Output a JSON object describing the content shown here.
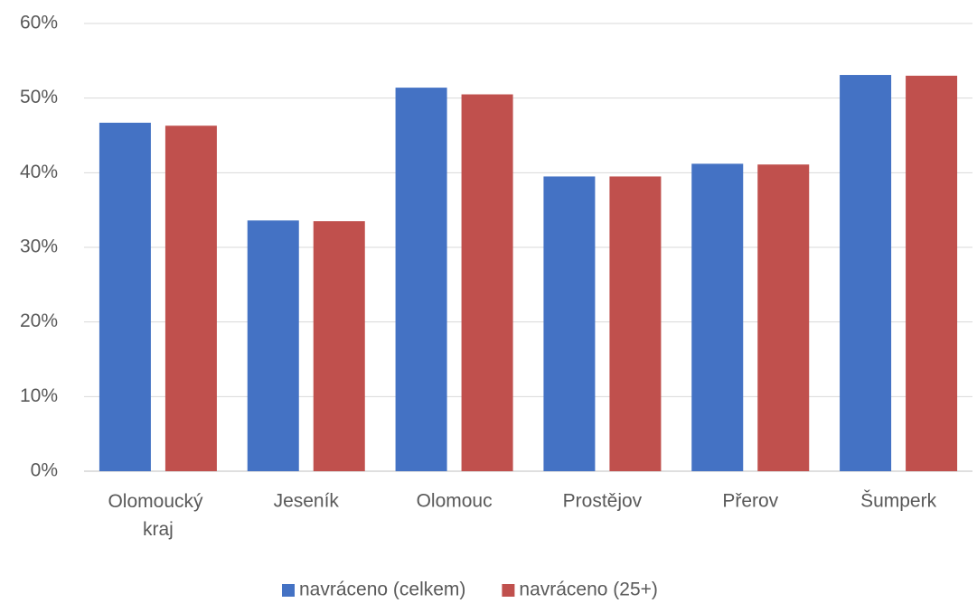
{
  "chart_data": {
    "type": "bar",
    "categories": [
      "Olomoucký kraj",
      "Jeseník",
      "Olomouc",
      "Prostějov",
      "Přerov",
      "Šumperk"
    ],
    "series": [
      {
        "name": "navráceno (celkem)",
        "color": "#4472c4",
        "values": [
          46.7,
          33.6,
          51.4,
          39.5,
          41.2,
          53.1
        ]
      },
      {
        "name": "navráceno (25+)",
        "color": "#c0504d",
        "values": [
          46.3,
          33.5,
          50.5,
          39.5,
          41.1,
          53.0
        ]
      }
    ],
    "ylim": [
      0,
      60
    ],
    "yticks": [
      {
        "value": 0,
        "label": "0%"
      },
      {
        "value": 10,
        "label": "10%"
      },
      {
        "value": 20,
        "label": "20%"
      },
      {
        "value": 30,
        "label": "30%"
      },
      {
        "value": 40,
        "label": "40%"
      },
      {
        "value": 50,
        "label": "50%"
      },
      {
        "value": 60,
        "label": "60%"
      }
    ],
    "grid": true,
    "legend": "bottom"
  }
}
